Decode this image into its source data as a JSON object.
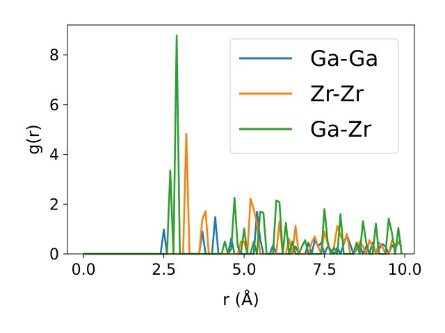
{
  "chart_data": {
    "type": "line",
    "title": "",
    "xlabel": "r (Å)",
    "ylabel": "g(r)",
    "xlim": [
      -0.5,
      10.3
    ],
    "ylim": [
      0,
      9.2
    ],
    "xticks": [
      0.0,
      2.5,
      5.0,
      7.5,
      10.0
    ],
    "xtick_labels": [
      "0.0",
      "2.5",
      "5.0",
      "7.5",
      "10.0"
    ],
    "yticks": [
      0,
      2,
      4,
      6,
      8
    ],
    "ytick_labels": [
      "0",
      "2",
      "4",
      "6",
      "8"
    ],
    "grid": false,
    "legend_position": "top-right",
    "series": [
      {
        "name": "Ga-Ga",
        "color": "#1f77b4",
        "x": [
          0.0,
          2.4,
          2.5,
          2.6,
          2.7,
          3.6,
          3.7,
          3.8,
          4.0,
          4.1,
          4.2,
          4.5,
          4.6,
          4.7,
          5.3,
          5.4,
          5.5,
          5.6,
          5.8,
          5.9,
          6.0,
          6.5,
          6.6,
          6.7,
          6.9,
          7.0,
          7.1,
          7.2,
          7.3,
          7.4,
          7.5,
          7.6,
          7.8,
          7.9,
          8.0,
          8.1,
          8.2,
          8.3,
          8.4,
          8.6,
          8.7,
          8.8,
          8.9,
          9.0,
          9.1,
          9.2,
          9.3,
          9.4,
          9.5,
          9.6,
          9.7,
          9.8,
          9.9
        ],
        "y": [
          0.0,
          0.0,
          0.98,
          0.0,
          0.0,
          0.0,
          0.9,
          0.0,
          0.0,
          1.48,
          0.0,
          0.0,
          0.62,
          0.0,
          0.0,
          1.7,
          0.6,
          0.0,
          0.0,
          0.35,
          0.0,
          0.0,
          0.3,
          0.0,
          0.0,
          0.45,
          0.0,
          0.55,
          0.3,
          0.45,
          0.0,
          0.3,
          0.0,
          0.25,
          0.0,
          0.4,
          0.75,
          0.4,
          0.0,
          0.35,
          0.0,
          0.3,
          0.0,
          0.45,
          0.0,
          0.2,
          0.4,
          0.3,
          0.0,
          0.35,
          0.2,
          0.5,
          0.3
        ]
      },
      {
        "name": "Zr-Zr",
        "color": "#ff7f0e",
        "x": [
          0.0,
          3.1,
          3.2,
          3.3,
          3.6,
          3.7,
          3.8,
          3.9,
          4.0,
          4.8,
          4.9,
          5.0,
          5.1,
          5.2,
          5.3,
          5.4,
          5.5,
          5.6,
          5.9,
          6.0,
          6.1,
          6.2,
          6.3,
          6.4,
          6.5,
          6.6,
          6.7,
          6.8,
          7.0,
          7.1,
          7.2,
          7.3,
          7.4,
          7.5,
          7.6,
          7.7,
          7.8,
          7.9,
          8.0,
          8.1,
          8.2,
          8.3,
          8.4,
          8.6,
          8.7,
          8.8,
          8.9,
          9.0,
          9.1,
          9.2,
          9.3,
          9.4,
          9.5,
          9.6,
          9.7,
          9.8,
          9.9
        ],
        "y": [
          0.0,
          0.0,
          4.82,
          0.0,
          0.0,
          1.4,
          1.72,
          0.0,
          0.0,
          0.0,
          0.5,
          0.5,
          0.0,
          2.22,
          1.8,
          1.2,
          0.0,
          0.0,
          0.0,
          0.0,
          1.3,
          0.0,
          0.0,
          0.6,
          0.0,
          1.12,
          0.0,
          0.0,
          0.0,
          0.45,
          0.7,
          0.3,
          0.0,
          0.9,
          0.4,
          0.0,
          0.3,
          1.12,
          0.75,
          0.45,
          0.8,
          0.0,
          0.0,
          0.5,
          0.3,
          0.0,
          0.55,
          0.3,
          0.0,
          0.45,
          0.3,
          0.0,
          0.0,
          0.55,
          0.35,
          0.5,
          0.5
        ]
      },
      {
        "name": "Ga-Zr",
        "color": "#2ca02c",
        "x": [
          0.0,
          2.6,
          2.7,
          2.8,
          2.9,
          3.0,
          4.2,
          4.3,
          4.4,
          4.5,
          4.6,
          4.7,
          4.8,
          4.9,
          5.0,
          5.1,
          5.2,
          5.3,
          5.4,
          5.5,
          5.6,
          5.7,
          5.8,
          5.9,
          6.0,
          6.1,
          6.2,
          6.3,
          6.4,
          6.5,
          6.6,
          6.7,
          6.8,
          6.9,
          7.0,
          7.1,
          7.2,
          7.3,
          7.4,
          7.5,
          7.6,
          7.7,
          7.8,
          7.9,
          8.0,
          8.1,
          8.2,
          8.3,
          8.4,
          8.5,
          8.6,
          8.7,
          8.8,
          8.9,
          9.0,
          9.1,
          9.2,
          9.3,
          9.4,
          9.5,
          9.6,
          9.7,
          9.8,
          9.9
        ],
        "y": [
          0.0,
          0.0,
          3.35,
          0.0,
          8.78,
          0.0,
          0.0,
          0.0,
          0.5,
          0.0,
          0.2,
          2.25,
          0.3,
          0.0,
          1.02,
          0.0,
          0.0,
          0.5,
          0.0,
          1.7,
          1.65,
          0.0,
          0.0,
          0.0,
          2.15,
          2.08,
          0.0,
          1.25,
          0.0,
          0.5,
          0.0,
          0.0,
          0.3,
          0.55,
          0.0,
          0.0,
          0.0,
          0.0,
          0.0,
          1.8,
          0.5,
          0.0,
          0.25,
          0.0,
          1.6,
          0.0,
          0.0,
          0.0,
          0.0,
          0.45,
          0.0,
          1.32,
          0.45,
          0.0,
          0.0,
          1.22,
          0.0,
          0.0,
          0.0,
          1.42,
          0.85,
          0.0,
          1.05,
          0.0
        ]
      }
    ]
  }
}
